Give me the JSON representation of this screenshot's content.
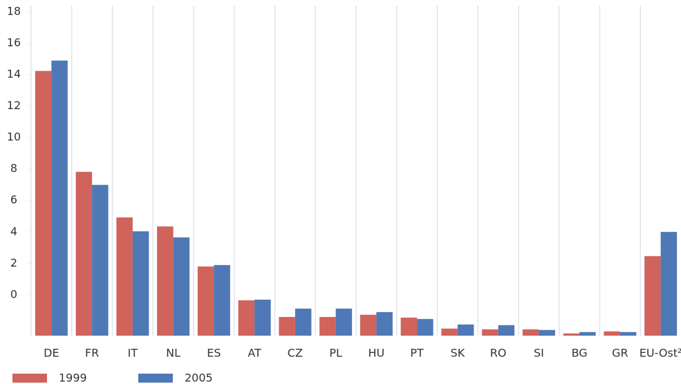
{
  "chart_data": {
    "type": "bar",
    "categories": [
      "DE",
      "FR",
      "IT",
      "NL",
      "ES",
      "AT",
      "CZ",
      "PL",
      "HU",
      "PT",
      "SK",
      "RO",
      "SI",
      "BG",
      "GR",
      "EU-Ost²"
    ],
    "series": [
      {
        "name": "1999",
        "color": "#d0635c",
        "values": [
          14.24,
          7.82,
          4.92,
          4.35,
          1.8,
          -0.35,
          -1.41,
          -1.41,
          -1.27,
          -1.45,
          -2.15,
          -2.2,
          -2.2,
          -2.46,
          -2.33,
          2.46
        ]
      },
      {
        "name": "2005",
        "color": "#4f78b6",
        "values": [
          14.9,
          6.99,
          4.04,
          3.65,
          1.89,
          -0.31,
          -0.88,
          -0.88,
          -1.1,
          -1.54,
          -1.89,
          -1.93,
          -2.24,
          -2.37,
          -2.37,
          4.0
        ]
      }
    ],
    "ylim": [
      -2.6,
      18.4
    ],
    "yticks": [
      0,
      2,
      4,
      6,
      8,
      10,
      12,
      14,
      16,
      18
    ],
    "grid": true,
    "legend": "bottom-left"
  }
}
